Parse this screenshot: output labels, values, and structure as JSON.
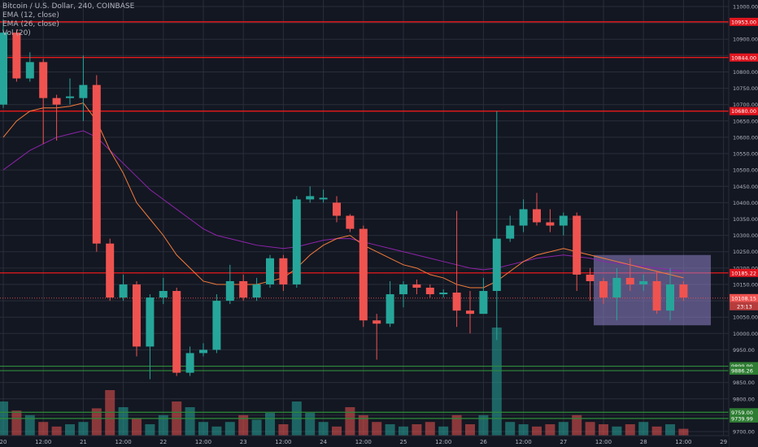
{
  "legend": {
    "title": "Bitcoin / U.S. Dollar, 240, COINBASE",
    "ema12": "EMA (12, close)",
    "ema26": "EMA (26, close)",
    "vol": "Vol (20)"
  },
  "colors": {
    "background": "#131722",
    "grid": "#2a2e39",
    "up": "#26a69a",
    "down": "#ef5350",
    "ema12": "#f57c3b",
    "ema26": "#8e24aa",
    "red_level": "#ff1a1a",
    "green_level": "#2e8b3a",
    "zone": "#8f82c9",
    "axis_text": "#b2b5be"
  },
  "chart_data": {
    "type": "candlestick",
    "ylim": [
      9700,
      11000
    ],
    "y_ticks": [
      9700,
      9750,
      9800,
      9850,
      9900,
      9950,
      10000,
      10050,
      10100,
      10150,
      10200,
      10250,
      10300,
      10350,
      10400,
      10450,
      10500,
      10550,
      10600,
      10650,
      10700,
      10750,
      10800,
      10850,
      10900,
      10950,
      11000
    ],
    "x_tick_labels": [
      "20",
      "12:00",
      "21",
      "12:00",
      "22",
      "12:00",
      "23",
      "12:00",
      "24",
      "12:00",
      "25",
      "12:00",
      "26",
      "12:00",
      "27",
      "12:00",
      "28",
      "12:00",
      "29"
    ],
    "candles": [
      {
        "o": 10700,
        "h": 10960,
        "l": 10690,
        "c": 10920
      },
      {
        "o": 10920,
        "h": 10930,
        "l": 10770,
        "c": 10780
      },
      {
        "o": 10780,
        "h": 10860,
        "l": 10770,
        "c": 10830
      },
      {
        "o": 10830,
        "h": 10840,
        "l": 10580,
        "c": 10720
      },
      {
        "o": 10720,
        "h": 10730,
        "l": 10590,
        "c": 10700
      },
      {
        "o": 10720,
        "h": 10780,
        "l": 10700,
        "c": 10725
      },
      {
        "o": 10720,
        "h": 10850,
        "l": 10650,
        "c": 10760
      },
      {
        "o": 10760,
        "h": 10790,
        "l": 10250,
        "c": 10275
      },
      {
        "o": 10275,
        "h": 10290,
        "l": 10100,
        "c": 10110
      },
      {
        "o": 10110,
        "h": 10180,
        "l": 10100,
        "c": 10150
      },
      {
        "o": 10150,
        "h": 10160,
        "l": 9930,
        "c": 9960
      },
      {
        "o": 9960,
        "h": 10120,
        "l": 9860,
        "c": 10110
      },
      {
        "o": 10110,
        "h": 10170,
        "l": 10090,
        "c": 10130
      },
      {
        "o": 10130,
        "h": 10140,
        "l": 9870,
        "c": 9880
      },
      {
        "o": 9880,
        "h": 9960,
        "l": 9870,
        "c": 9940
      },
      {
        "o": 9940,
        "h": 9970,
        "l": 9930,
        "c": 9950
      },
      {
        "o": 9950,
        "h": 10120,
        "l": 9940,
        "c": 10100
      },
      {
        "o": 10100,
        "h": 10210,
        "l": 10090,
        "c": 10160
      },
      {
        "o": 10160,
        "h": 10180,
        "l": 10100,
        "c": 10110
      },
      {
        "o": 10110,
        "h": 10170,
        "l": 10100,
        "c": 10150
      },
      {
        "o": 10150,
        "h": 10240,
        "l": 10140,
        "c": 10230
      },
      {
        "o": 10230,
        "h": 10240,
        "l": 10130,
        "c": 10150
      },
      {
        "o": 10150,
        "h": 10420,
        "l": 10140,
        "c": 10410
      },
      {
        "o": 10410,
        "h": 10450,
        "l": 10400,
        "c": 10420
      },
      {
        "o": 10410,
        "h": 10440,
        "l": 10400,
        "c": 10415
      },
      {
        "o": 10400,
        "h": 10420,
        "l": 10340,
        "c": 10360
      },
      {
        "o": 10360,
        "h": 10365,
        "l": 10310,
        "c": 10320
      },
      {
        "o": 10320,
        "h": 10330,
        "l": 10020,
        "c": 10040
      },
      {
        "o": 10040,
        "h": 10060,
        "l": 9920,
        "c": 10030
      },
      {
        "o": 10030,
        "h": 10160,
        "l": 10020,
        "c": 10120
      },
      {
        "o": 10120,
        "h": 10160,
        "l": 10080,
        "c": 10150
      },
      {
        "o": 10150,
        "h": 10165,
        "l": 10120,
        "c": 10140
      },
      {
        "o": 10140,
        "h": 10150,
        "l": 10110,
        "c": 10120
      },
      {
        "o": 10120,
        "h": 10135,
        "l": 10110,
        "c": 10125
      },
      {
        "o": 10125,
        "h": 10375,
        "l": 10020,
        "c": 10070
      },
      {
        "o": 10070,
        "h": 10130,
        "l": 10000,
        "c": 10060
      },
      {
        "o": 10060,
        "h": 10170,
        "l": 10060,
        "c": 10130
      },
      {
        "o": 10130,
        "h": 10680,
        "l": 9980,
        "c": 10290
      },
      {
        "o": 10290,
        "h": 10360,
        "l": 10280,
        "c": 10330
      },
      {
        "o": 10330,
        "h": 10410,
        "l": 10310,
        "c": 10380
      },
      {
        "o": 10380,
        "h": 10430,
        "l": 10330,
        "c": 10340
      },
      {
        "o": 10340,
        "h": 10380,
        "l": 10310,
        "c": 10330
      },
      {
        "o": 10330,
        "h": 10370,
        "l": 10300,
        "c": 10360
      },
      {
        "o": 10360,
        "h": 10370,
        "l": 10130,
        "c": 10180
      },
      {
        "o": 10180,
        "h": 10200,
        "l": 10100,
        "c": 10160
      },
      {
        "o": 10160,
        "h": 10170,
        "l": 10090,
        "c": 10110
      },
      {
        "o": 10110,
        "h": 10200,
        "l": 10040,
        "c": 10170
      },
      {
        "o": 10170,
        "h": 10230,
        "l": 10130,
        "c": 10150
      },
      {
        "o": 10150,
        "h": 10180,
        "l": 10130,
        "c": 10160
      },
      {
        "o": 10160,
        "h": 10190,
        "l": 10060,
        "c": 10070
      },
      {
        "o": 10070,
        "h": 10200,
        "l": 10040,
        "c": 10150
      },
      {
        "o": 10150,
        "h": 10160,
        "l": 10100,
        "c": 10110
      }
    ],
    "volumes": [
      30,
      22,
      18,
      12,
      8,
      10,
      12,
      24,
      40,
      25,
      15,
      10,
      18,
      30,
      25,
      12,
      8,
      12,
      18,
      14,
      20,
      10,
      30,
      20,
      12,
      8,
      25,
      18,
      12,
      10,
      8,
      10,
      12,
      8,
      18,
      10,
      18,
      95,
      12,
      10,
      8,
      10,
      12,
      18,
      12,
      10,
      8,
      10,
      12,
      8,
      10,
      6
    ],
    "ema12": [
      10600,
      10650,
      10680,
      10690,
      10690,
      10695,
      10705,
      10650,
      10560,
      10490,
      10400,
      10350,
      10300,
      10240,
      10200,
      10160,
      10150,
      10150,
      10150,
      10150,
      10160,
      10170,
      10200,
      10240,
      10270,
      10290,
      10300,
      10270,
      10250,
      10230,
      10210,
      10200,
      10180,
      10170,
      10150,
      10140,
      10140,
      10160,
      10190,
      10220,
      10240,
      10250,
      10260,
      10250,
      10240,
      10230,
      10220,
      10210,
      10200,
      10190,
      10180,
      10170
    ],
    "ema26": [
      10500,
      10530,
      10560,
      10580,
      10600,
      10610,
      10620,
      10600,
      10560,
      10520,
      10480,
      10440,
      10410,
      10380,
      10350,
      10320,
      10300,
      10290,
      10280,
      10270,
      10265,
      10260,
      10265,
      10275,
      10285,
      10290,
      10290,
      10280,
      10270,
      10260,
      10250,
      10240,
      10230,
      10220,
      10210,
      10200,
      10195,
      10200,
      10210,
      10220,
      10230,
      10235,
      10240,
      10235,
      10230,
      10220,
      10215,
      10210,
      10205,
      10200,
      10195,
      10190
    ],
    "red_levels": [
      {
        "value": 10953.0,
        "label": "10953.00"
      },
      {
        "value": 10844.0,
        "label": "10844.00"
      },
      {
        "value": 10680.0,
        "label": "10680.00"
      },
      {
        "value": 10185.22,
        "label": "10185.22"
      }
    ],
    "green_levels": [
      {
        "value": 9899.99,
        "label": "9899.99"
      },
      {
        "value": 9886.26,
        "label": "9886.26"
      },
      {
        "value": 9759.0,
        "label": "9759.00"
      },
      {
        "value": 9739.99,
        "label": "9739.99"
      }
    ],
    "zone": {
      "y_top": 10240,
      "y_bottom": 10025,
      "from_candle": 45
    },
    "last_price": {
      "value": 10108.15,
      "label": "10108.15",
      "countdown": "23:13"
    }
  }
}
